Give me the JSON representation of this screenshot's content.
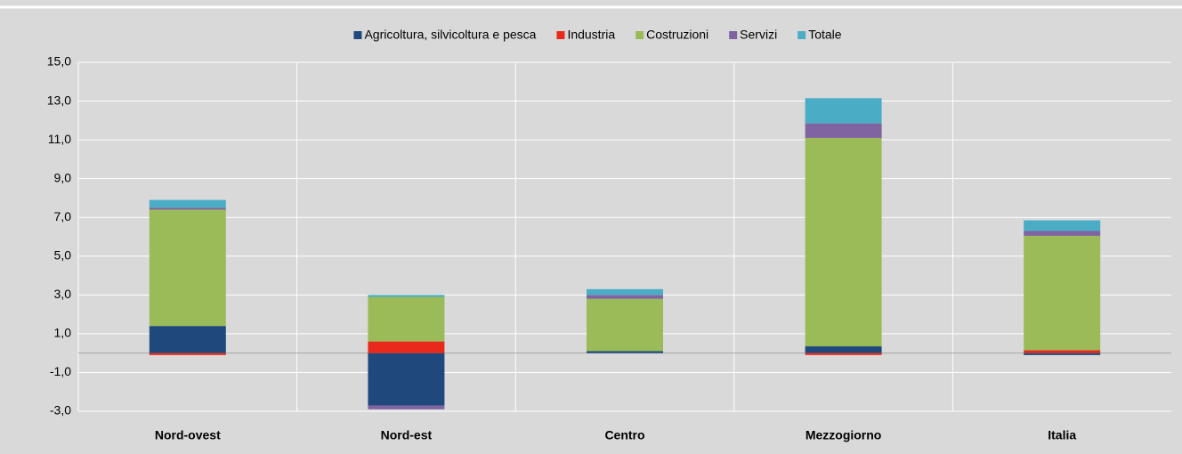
{
  "chart_data": {
    "type": "stacked_bar",
    "categories": [
      "Nord-ovest",
      "Nord-est",
      "Centro",
      "Mezzogiorno",
      "Italia"
    ],
    "series": [
      {
        "name": "Agricoltura, silvicoltura e pesca",
        "color": "#1f497d",
        "values": [
          1.4,
          -2.7,
          0.1,
          0.35,
          -0.1
        ]
      },
      {
        "name": "Industria",
        "color": "#e8291c",
        "values": [
          -0.1,
          0.6,
          0.0,
          -0.1,
          0.15
        ]
      },
      {
        "name": "Costruzioni",
        "color": "#9bbb59",
        "values": [
          6.0,
          2.3,
          2.7,
          10.75,
          5.9
        ]
      },
      {
        "name": "Servizi",
        "color": "#8064a2",
        "values": [
          0.1,
          -0.2,
          0.2,
          0.75,
          0.25
        ]
      },
      {
        "name": "Totale",
        "color": "#4bacc6",
        "values": [
          0.4,
          0.1,
          0.3,
          1.3,
          0.55
        ]
      }
    ],
    "ylim": [
      -3,
      15
    ],
    "yticks": [
      {
        "value": -3,
        "label": "-3,0"
      },
      {
        "value": -1,
        "label": "-1,0"
      },
      {
        "value": 1,
        "label": "1,0"
      },
      {
        "value": 3,
        "label": "3,0"
      },
      {
        "value": 5,
        "label": "5,0"
      },
      {
        "value": 7,
        "label": "7,0"
      },
      {
        "value": 9,
        "label": "9,0"
      },
      {
        "value": 11,
        "label": "11,0"
      },
      {
        "value": 13,
        "label": "13,0"
      },
      {
        "value": 15,
        "label": "15,0"
      }
    ],
    "grid": true,
    "legend": "top"
  }
}
